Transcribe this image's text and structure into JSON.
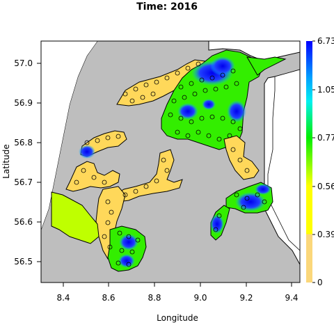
{
  "title": "Time: 2016",
  "xlabel": "Longitude",
  "ylabel": "Latitude",
  "x_ticks": [
    "8.4",
    "8.6",
    "8.8",
    "9.0",
    "9.2",
    "9.4"
  ],
  "y_ticks": [
    "56.5",
    "56.6",
    "56.7",
    "56.8",
    "56.9",
    "57.0"
  ],
  "colorbar_labels": [
    "0",
    "0.39",
    "0.56",
    "0.77",
    "1.05",
    "6.73"
  ],
  "colors": {
    "land": "#bebebe",
    "water_low": "#fbd77a",
    "water_mid": "#ffff00",
    "water_high": "#00ee00",
    "water_max": "#0000ff"
  },
  "chart_data": {
    "type": "heatmap",
    "title": "Time: 2016",
    "xlabel": "Longitude",
    "ylabel": "Latitude",
    "xlim": [
      8.3,
      9.5
    ],
    "ylim": [
      56.44,
      57.06
    ],
    "colorbar_breaks": [
      0,
      0.39,
      0.56,
      0.77,
      1.05,
      6.73
    ],
    "colorbar_colors": [
      "#fbd77a",
      "#ffff00",
      "#7fff00",
      "#00ee00",
      "#00bfff",
      "#0000ff"
    ]
  }
}
